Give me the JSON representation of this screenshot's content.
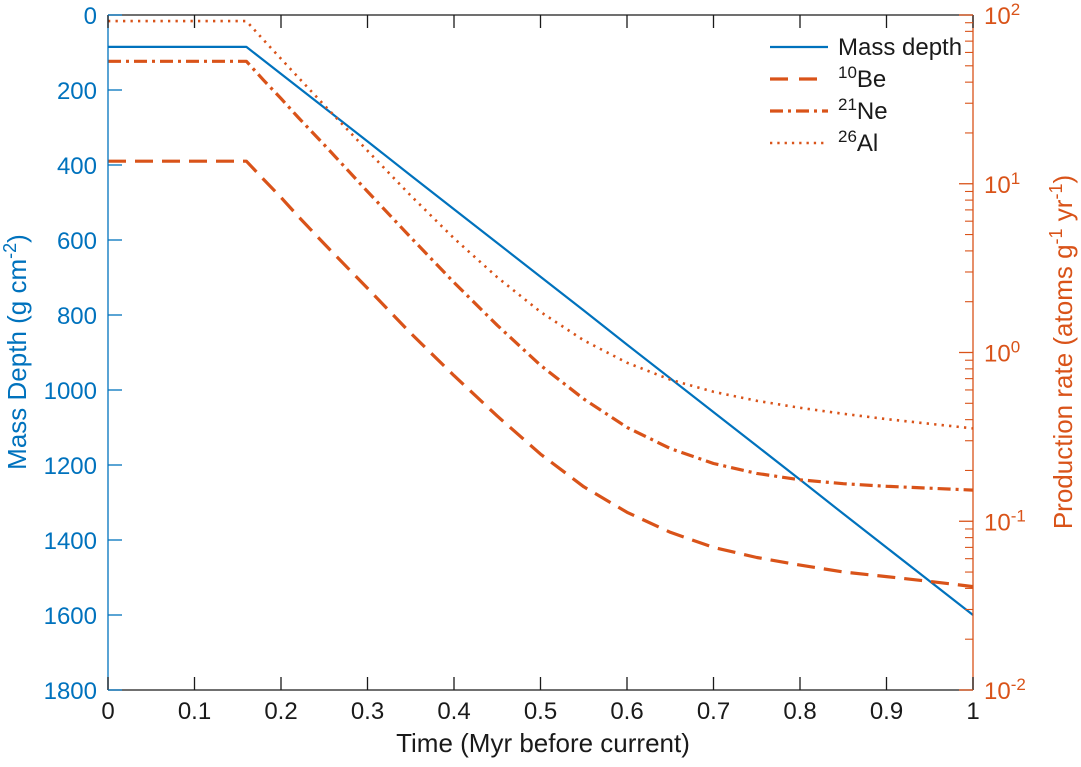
{
  "chart_data": {
    "type": "line",
    "title": "",
    "x_axis": {
      "label": "Time (Myr before current)",
      "label_parts": [
        {
          "t": "Time (Myr before current)"
        }
      ],
      "min": 0,
      "max": 1,
      "ticks": [
        0,
        0.1,
        0.2,
        0.3,
        0.4,
        0.5,
        0.6,
        0.7,
        0.8,
        0.9,
        1
      ],
      "tick_labels": [
        "0",
        "0.1",
        "0.2",
        "0.3",
        "0.4",
        "0.5",
        "0.6",
        "0.7",
        "0.8",
        "0.9",
        "1"
      ],
      "color": "#1a1a1a"
    },
    "left_y_axis": {
      "label": "Mass Depth (g cm⁻²)",
      "label_parts": [
        {
          "t": "Mass Depth (g cm"
        },
        {
          "t": "-2",
          "sup": true
        },
        {
          "t": ")"
        }
      ],
      "min": 0,
      "max": 1800,
      "direction": "reverse",
      "ticks": [
        0,
        200,
        400,
        600,
        800,
        1000,
        1200,
        1400,
        1600,
        1800
      ],
      "tick_labels": [
        "0",
        "200",
        "400",
        "600",
        "800",
        "1000",
        "1200",
        "1400",
        "1600",
        "1800"
      ],
      "color": "#0072BD"
    },
    "right_y_axis": {
      "label": "Production rate (atoms g⁻¹ yr⁻¹)",
      "label_parts": [
        {
          "t": "Production rate (atoms g"
        },
        {
          "t": "-1",
          "sup": true
        },
        {
          "t": " yr"
        },
        {
          "t": "-1",
          "sup": true
        },
        {
          "t": ")"
        }
      ],
      "scale": "log",
      "min_exp": -2,
      "max_exp": 2,
      "tick_exponents": [
        2,
        1,
        0,
        -1,
        -2
      ],
      "tick_labels": [
        {
          "text": "10²",
          "parts": [
            {
              "t": "10"
            },
            {
              "t": "2",
              "sup": true
            }
          ]
        },
        {
          "text": "10¹",
          "parts": [
            {
              "t": "10"
            },
            {
              "t": "1",
              "sup": true
            }
          ]
        },
        {
          "text": "10⁰",
          "parts": [
            {
              "t": "10"
            },
            {
              "t": "0",
              "sup": true
            }
          ]
        },
        {
          "text": "10⁻¹",
          "parts": [
            {
              "t": "10"
            },
            {
              "t": "-1",
              "sup": true
            }
          ]
        },
        {
          "text": "10⁻²",
          "parts": [
            {
              "t": "10"
            },
            {
              "t": "-2",
              "sup": true
            }
          ]
        }
      ],
      "color": "#D95319"
    },
    "x": [
      0,
      0.05,
      0.1,
      0.15,
      0.16,
      0.18,
      0.2,
      0.22,
      0.25,
      0.3,
      0.35,
      0.4,
      0.45,
      0.5,
      0.55,
      0.6,
      0.65,
      0.7,
      0.75,
      0.8,
      0.85,
      0.9,
      0.95,
      1
    ],
    "series": [
      {
        "name": "Mass depth",
        "name_parts": [
          {
            "t": "Mass depth"
          }
        ],
        "axis": "left",
        "line_style": "solid",
        "color": "#0072BD",
        "values": [
          85,
          85,
          85,
          85,
          85,
          121,
          157,
          193,
          247,
          337,
          428,
          518,
          608,
          698,
          788,
          879,
          969,
          1059,
          1149,
          1239,
          1330,
          1420,
          1510,
          1600
        ]
      },
      {
        "name": "¹⁰Be",
        "name_parts": [
          {
            "t": "10",
            "sup": true
          },
          {
            "t": "Be"
          }
        ],
        "axis": "right",
        "line_style": "dashed",
        "color": "#D95319",
        "values": [
          13.6,
          13.6,
          13.6,
          13.6,
          13.6,
          10.6,
          8.3,
          6.4,
          4.4,
          2.4,
          1.3,
          0.73,
          0.42,
          0.25,
          0.16,
          0.113,
          0.086,
          0.07,
          0.061,
          0.055,
          0.05,
          0.047,
          0.044,
          0.041
        ]
      },
      {
        "name": "²¹Ne",
        "name_parts": [
          {
            "t": "21",
            "sup": true
          },
          {
            "t": "Ne"
          }
        ],
        "axis": "right",
        "line_style": "dashdot",
        "color": "#D95319",
        "values": [
          53.2,
          53.2,
          53.2,
          53.2,
          53.2,
          41,
          32,
          24.7,
          17,
          9,
          4.8,
          2.6,
          1.45,
          0.84,
          0.53,
          0.36,
          0.27,
          0.22,
          0.192,
          0.176,
          0.167,
          0.161,
          0.157,
          0.153
        ]
      },
      {
        "name": "²⁶Al",
        "name_parts": [
          {
            "t": "26",
            "sup": true
          },
          {
            "t": "Al"
          }
        ],
        "axis": "right",
        "line_style": "dotted",
        "color": "#D95319",
        "values": [
          92,
          92,
          92,
          92,
          92,
          71,
          55,
          42.7,
          29.2,
          15.7,
          8.5,
          4.75,
          2.79,
          1.74,
          1.18,
          0.87,
          0.69,
          0.585,
          0.517,
          0.47,
          0.433,
          0.403,
          0.378,
          0.355
        ]
      }
    ],
    "legend": {
      "position": "northeast",
      "box": false,
      "entries": [
        "Mass depth",
        "¹⁰Be",
        "²¹Ne",
        "²⁶Al"
      ]
    }
  }
}
